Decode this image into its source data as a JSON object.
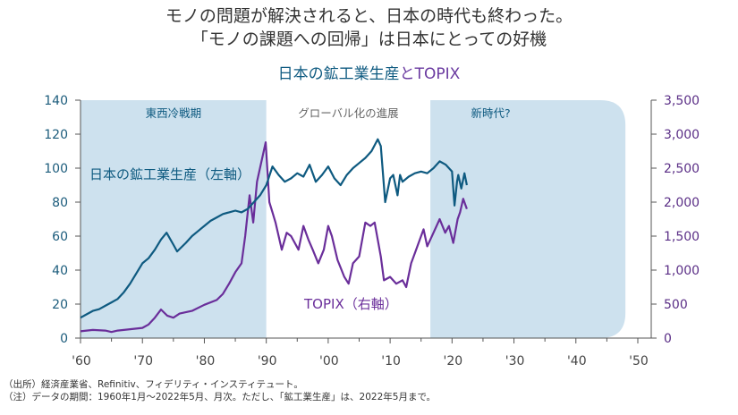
{
  "header": {
    "headline_line1": "モノの問題が解決されると、日本の時代も終わった。",
    "headline_line2": "「モノの課題への回帰」は日本にとっての好機",
    "subtitle_part1": "日本の鉱工業生産",
    "subtitle_part2": "とTOPIX"
  },
  "footer": {
    "source": "（出所）経済産業省、Refinitiv、フィデリティ・インスティテュート。",
    "note": "（注）データの期間：1960年1月～2022年5月、月次。ただし、「鉱工業生産」は、2022年5月まで。"
  },
  "colors": {
    "production": "#0e5a80",
    "topix": "#6a2e9a",
    "shade": "#cde1ee",
    "axis": "#555555"
  },
  "chart_data": {
    "type": "line",
    "title": "日本の鉱工業生産とTOPIX",
    "xlabel": "",
    "x_range": [
      1960,
      2050
    ],
    "x_ticks": [
      1960,
      1970,
      1980,
      1990,
      2000,
      2010,
      2020,
      2030,
      2040,
      2050
    ],
    "x_tick_labels": [
      "'60",
      "'70",
      "'80",
      "'90",
      "'00",
      "'10",
      "'20",
      "'30",
      "'40",
      "'50"
    ],
    "y_left": {
      "label": "日本の鉱工業生産（左軸）",
      "range": [
        0,
        140
      ],
      "ticks": [
        0,
        20,
        40,
        60,
        80,
        100,
        120,
        140
      ],
      "tick_labels": [
        "0",
        "20",
        "40",
        "60",
        "80",
        "100",
        "120",
        "140"
      ]
    },
    "y_right": {
      "label": "TOPIX（右軸）",
      "range": [
        0,
        3500
      ],
      "ticks": [
        0,
        500,
        1000,
        1500,
        2000,
        2500,
        3000,
        3500
      ],
      "tick_labels": [
        "0",
        "500",
        "1,000",
        "1,500",
        "2,000",
        "2,500",
        "3,000",
        "3,500"
      ]
    },
    "eras": [
      {
        "label": "東西冷戦期",
        "start": 1960,
        "end": 1990,
        "shaded": true
      },
      {
        "label": "グローバル化の進展",
        "start": 1990,
        "end": 2016.5,
        "shaded": false
      },
      {
        "label": "新時代?",
        "start": 2016.5,
        "end": 2048,
        "shaded": true
      }
    ],
    "series": [
      {
        "name": "日本の鉱工業生産（左軸）",
        "axis": "left",
        "x": [
          1960,
          1961,
          1962,
          1963,
          1964,
          1965,
          1966,
          1967,
          1968,
          1969,
          1970,
          1971,
          1972,
          1973,
          1973.9,
          1975,
          1975.6,
          1977,
          1978,
          1979,
          1980,
          1981,
          1982,
          1983,
          1984,
          1985,
          1986,
          1987,
          1988,
          1989,
          1990,
          1991,
          1992,
          1993,
          1994,
          1995,
          1996,
          1997,
          1998,
          1999,
          2000,
          2001,
          2002,
          2003,
          2004,
          2005,
          2006,
          2007,
          2008,
          2008.5,
          2009.2,
          2010,
          2010.5,
          2011.2,
          2011.6,
          2012,
          2013,
          2014,
          2015,
          2016,
          2017,
          2018,
          2019,
          2020,
          2020.4,
          2020.8,
          2021,
          2021.5,
          2022,
          2022.4
        ],
        "values": [
          12,
          14,
          16,
          17,
          19,
          21,
          23,
          27,
          32,
          38,
          44,
          47,
          52,
          58,
          62,
          55,
          51,
          56,
          60,
          63,
          66,
          69,
          71,
          73,
          74,
          75,
          74,
          76,
          80,
          84,
          90,
          101,
          96,
          92,
          94,
          97,
          95,
          102,
          92,
          96,
          101,
          94,
          90,
          96,
          100,
          103,
          106,
          110,
          117,
          113,
          80,
          94,
          96,
          84,
          96,
          92,
          95,
          97,
          98,
          97,
          100,
          104,
          102,
          98,
          78,
          92,
          96,
          88,
          97,
          90
        ]
      },
      {
        "name": "TOPIX（右軸）",
        "axis": "right",
        "x": [
          1960,
          1962,
          1964,
          1965,
          1966,
          1968,
          1970,
          1971,
          1972,
          1973,
          1974,
          1975,
          1976,
          1977,
          1978,
          1980,
          1982,
          1983,
          1984,
          1985,
          1986,
          1986.6,
          1987.3,
          1987.9,
          1988.5,
          1989.9,
          1990.5,
          1991,
          1991.5,
          1992.5,
          1993.3,
          1994,
          1995.2,
          1996,
          1996.8,
          1997.5,
          1998.4,
          1999.3,
          2000,
          2000.6,
          2001.5,
          2002.6,
          2003.3,
          2004,
          2005,
          2006,
          2006.8,
          2007.5,
          2008.5,
          2009,
          2010,
          2011,
          2012,
          2012.6,
          2013.4,
          2014,
          2015.4,
          2016,
          2017,
          2018,
          2018.9,
          2019.5,
          2020.2,
          2020.9,
          2021.3,
          2021.8,
          2022.4
        ],
        "values": [
          100,
          120,
          110,
          90,
          110,
          130,
          150,
          200,
          300,
          420,
          330,
          300,
          360,
          380,
          400,
          490,
          560,
          650,
          800,
          970,
          1100,
          1500,
          2100,
          1700,
          2300,
          2880,
          2000,
          1850,
          1700,
          1300,
          1550,
          1500,
          1300,
          1650,
          1450,
          1300,
          1100,
          1300,
          1650,
          1500,
          1150,
          900,
          800,
          1100,
          1200,
          1700,
          1650,
          1700,
          1200,
          850,
          900,
          800,
          850,
          750,
          1100,
          1250,
          1600,
          1350,
          1550,
          1750,
          1550,
          1650,
          1400,
          1750,
          1850,
          2050,
          1900
        ]
      }
    ],
    "annotations": [
      "東西冷戦期",
      "グローバル化の進展",
      "新時代?",
      "日本の鉱工業生産（左軸）",
      "TOPIX（右軸）"
    ],
    "grid": false,
    "legend": "none (inline labels)"
  }
}
